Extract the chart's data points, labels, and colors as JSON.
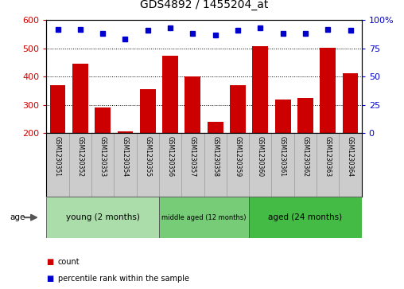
{
  "title": "GDS4892 / 1455204_at",
  "samples": [
    "GSM1230351",
    "GSM1230352",
    "GSM1230353",
    "GSM1230354",
    "GSM1230355",
    "GSM1230356",
    "GSM1230357",
    "GSM1230358",
    "GSM1230359",
    "GSM1230360",
    "GSM1230361",
    "GSM1230362",
    "GSM1230363",
    "GSM1230364"
  ],
  "counts": [
    370,
    445,
    290,
    205,
    355,
    475,
    400,
    240,
    370,
    507,
    318,
    323,
    503,
    412
  ],
  "percentile_ranks": [
    92,
    92,
    88,
    83,
    91,
    93,
    88,
    87,
    91,
    93,
    88,
    88,
    92,
    91
  ],
  "groups": [
    {
      "label": "young (2 months)",
      "color": "#aaddaa",
      "start": 0,
      "end": 5
    },
    {
      "label": "middle aged (12 months)",
      "color": "#77cc77",
      "start": 5,
      "end": 9
    },
    {
      "label": "aged (24 months)",
      "color": "#44bb44",
      "start": 9,
      "end": 14
    }
  ],
  "ylim_left": [
    200,
    600
  ],
  "ylim_right": [
    0,
    100
  ],
  "yticks_left": [
    200,
    300,
    400,
    500,
    600
  ],
  "yticks_right": [
    0,
    25,
    50,
    75,
    100
  ],
  "bar_color": "#cc0000",
  "dot_color": "#0000cc",
  "grid_color": "#000000",
  "background_color": "#ffffff",
  "tick_area_color": "#cccccc",
  "legend_count_color": "#cc0000",
  "legend_pct_color": "#0000cc",
  "title_fontsize": 10
}
